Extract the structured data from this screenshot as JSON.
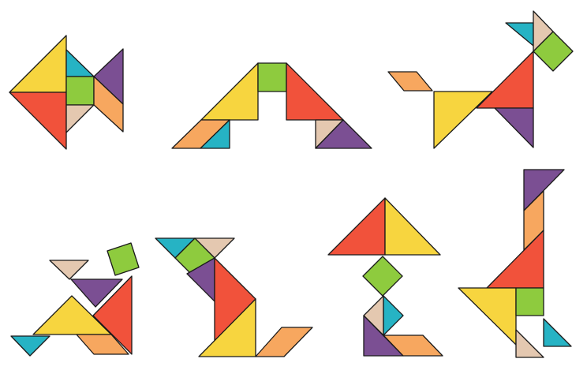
{
  "colors": {
    "yellow": "#f7d53f",
    "red": "#f1523b",
    "purple": "#7b4f93",
    "teal": "#26b3c4",
    "green": "#8ecb3e",
    "orange": "#f7a75f",
    "beige": "#e4c8b0",
    "outline": "#1a1a1a",
    "background": "#ffffff"
  },
  "figures": [
    {
      "name": "fish",
      "piece_count": 7
    },
    {
      "name": "bridge",
      "piece_count": 7
    },
    {
      "name": "dog",
      "piece_count": 7
    },
    {
      "name": "kneeling-person",
      "piece_count": 7
    },
    {
      "name": "cat",
      "piece_count": 7
    },
    {
      "name": "lamp",
      "piece_count": 7
    },
    {
      "name": "giraffe",
      "piece_count": 7
    }
  ]
}
